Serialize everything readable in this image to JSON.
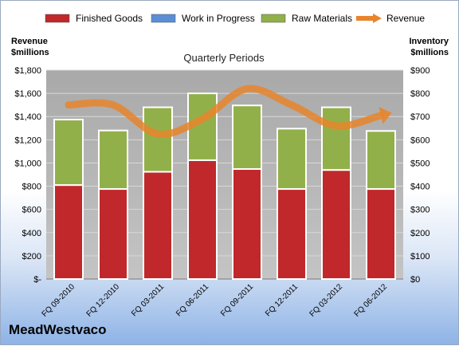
{
  "company_name": "MeadWestvaco",
  "colors": {
    "finished_goods": "#c0282b",
    "work_in_progress": "#5b8ed6",
    "raw_materials": "#92b04a",
    "revenue": "#e8852c",
    "plot_background": "#b3b3b3"
  },
  "chart_data": {
    "type": "bar",
    "stacked": true,
    "title": "Quarterly Periods",
    "ylabel_left": "Revenue\n$millions",
    "ylabel_right": "Inventory\n$millions",
    "categories": [
      "FQ 09-2010",
      "FQ 12-2010",
      "FQ 03-2011",
      "FQ 06-2011",
      "FQ 09-2011",
      "FQ 12-2011",
      "FQ 03-2012",
      "FQ 06-2012"
    ],
    "series": [
      {
        "name": "Finished Goods",
        "axis": "right",
        "values": [
          405,
          388,
          462,
          512,
          474,
          388,
          470,
          388
        ]
      },
      {
        "name": "Work in Progress",
        "axis": "right",
        "values": [
          0,
          0,
          0,
          0,
          0,
          0,
          0,
          0
        ]
      },
      {
        "name": "Raw Materials",
        "axis": "right",
        "values": [
          282,
          252,
          278,
          288,
          274,
          260,
          270,
          250
        ]
      },
      {
        "name": "Revenue",
        "type": "line",
        "axis": "left",
        "values": [
          1500,
          1500,
          1250,
          1380,
          1640,
          1500,
          1320,
          1410
        ]
      }
    ],
    "ylim_left": [
      0,
      1800
    ],
    "ylim_right": [
      0,
      900
    ],
    "yticks_left": [
      "$-",
      "$200",
      "$400",
      "$600",
      "$800",
      "$1,000",
      "$1,200",
      "$1,400",
      "$1,600",
      "$1,800"
    ],
    "yticks_right": [
      "$0",
      "$100",
      "$200",
      "$300",
      "$400",
      "$500",
      "$600",
      "$700",
      "$800",
      "$900"
    ],
    "legend_position": "top",
    "grid": true
  }
}
